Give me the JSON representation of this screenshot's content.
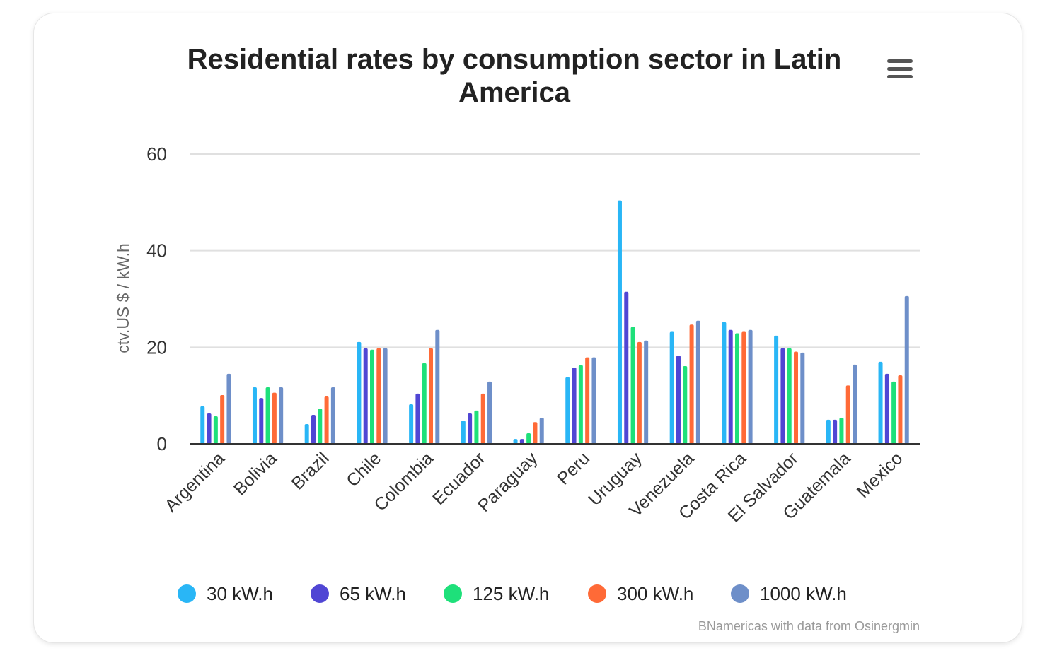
{
  "chart_data": {
    "type": "bar",
    "title_lines": [
      "Residential rates by consumption sector in Latin",
      "America"
    ],
    "ylabel": "ctv.US $ / kW.h",
    "xlabel": "",
    "ylim": [
      0,
      60
    ],
    "yticks": [
      0,
      20,
      40,
      60
    ],
    "grid": true,
    "legend_position": "bottom",
    "categories": [
      "Argentina",
      "Bolivia",
      "Brazil",
      "Chile",
      "Colombia",
      "Ecuador",
      "Paraguay",
      "Peru",
      "Uruguay",
      "Venezuela",
      "Costa Rica",
      "El Salvador",
      "Guatemala",
      "Mexico"
    ],
    "series": [
      {
        "name": "30 kW.h",
        "color": "#29b6f6",
        "values": [
          7.8,
          11.7,
          4.1,
          21.1,
          8.2,
          4.8,
          1.0,
          13.8,
          50.4,
          23.2,
          25.2,
          22.4,
          5.0,
          17.0
        ]
      },
      {
        "name": "65 kW.h",
        "color": "#5046d4",
        "values": [
          6.3,
          9.5,
          6.0,
          19.8,
          10.4,
          6.3,
          1.0,
          15.8,
          31.5,
          18.3,
          23.6,
          19.8,
          5.0,
          14.5
        ]
      },
      {
        "name": "125 kW.h",
        "color": "#1ee07a",
        "values": [
          5.7,
          11.7,
          7.3,
          19.5,
          16.7,
          6.9,
          2.2,
          16.3,
          24.2,
          16.1,
          22.9,
          19.8,
          5.4,
          12.9
        ]
      },
      {
        "name": "300 kW.h",
        "color": "#ff6a37",
        "values": [
          10.1,
          10.6,
          9.8,
          19.8,
          19.8,
          10.4,
          4.5,
          17.9,
          21.1,
          24.7,
          23.2,
          19.1,
          12.1,
          14.2
        ]
      },
      {
        "name": "1000 kW.h",
        "color": "#6e8fc9",
        "values": [
          14.5,
          11.7,
          11.7,
          19.8,
          23.6,
          12.9,
          5.4,
          17.9,
          21.4,
          25.5,
          23.6,
          18.9,
          16.4,
          30.6
        ]
      }
    ],
    "credit": "BNamericas with data from Osinergmin"
  },
  "menu": {
    "icon": "hamburger-menu-icon"
  }
}
